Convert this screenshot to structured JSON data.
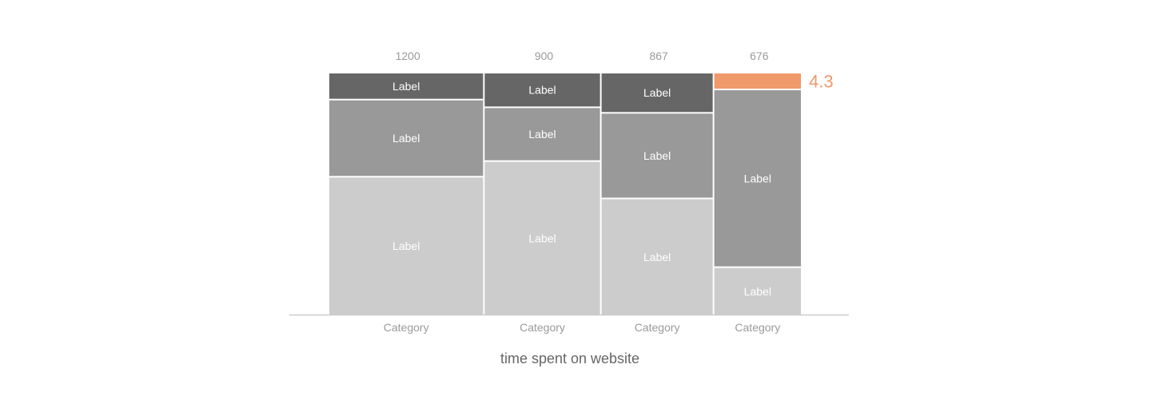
{
  "chart_data": {
    "type": "bar",
    "subtype": "mekko",
    "xlabel": "time spent on website",
    "categories": [
      "Category",
      "Category",
      "Category",
      "Category"
    ],
    "totals": [
      "1200",
      "900",
      "867",
      "676"
    ],
    "widths": [
      1200,
      900,
      867,
      676
    ],
    "columns": [
      {
        "segments": [
          {
            "label": "Label",
            "share": 0.575,
            "level": "light"
          },
          {
            "label": "Label",
            "share": 0.32,
            "level": "medium"
          },
          {
            "label": "Label",
            "share": 0.105,
            "level": "dark"
          }
        ]
      },
      {
        "segments": [
          {
            "label": "Label",
            "share": 0.64,
            "level": "light"
          },
          {
            "label": "Label",
            "share": 0.223,
            "level": "medium"
          },
          {
            "label": "Label",
            "share": 0.137,
            "level": "dark"
          }
        ]
      },
      {
        "segments": [
          {
            "label": "Label",
            "share": 0.485,
            "level": "light"
          },
          {
            "label": "Label",
            "share": 0.355,
            "level": "medium"
          },
          {
            "label": "Label",
            "share": 0.16,
            "level": "dark"
          }
        ]
      },
      {
        "segments": [
          {
            "label": "Label",
            "share": 0.2,
            "level": "light"
          },
          {
            "label": "Label",
            "share": 0.737,
            "level": "medium"
          },
          {
            "label": "4.3",
            "share": 0.063,
            "level": "highlight"
          }
        ]
      }
    ],
    "colors": {
      "light": "#cccccc",
      "medium": "#999999",
      "dark": "#666666",
      "highlight": "#f0996a",
      "axis": "#cccccc"
    },
    "grid": false,
    "legend": "none"
  }
}
